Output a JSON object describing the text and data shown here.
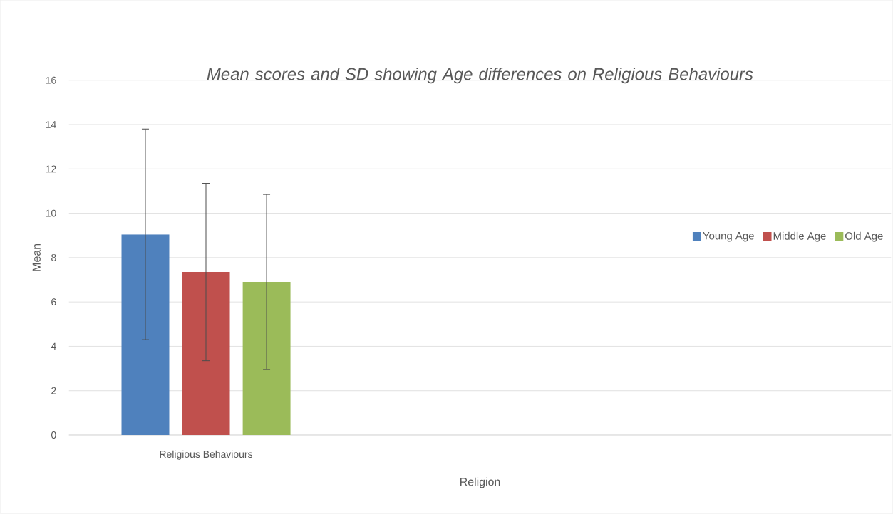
{
  "chart_data": {
    "type": "bar",
    "title": "Mean scores and SD showing Age differences on Religious Behaviours",
    "xlabel": "Religion",
    "ylabel": "Mean",
    "categories": [
      "Religious Behaviours",
      null,
      null
    ],
    "series": [
      {
        "name": "Young Age",
        "color": "#4f81bd",
        "values": [
          9.05,
          null,
          null
        ],
        "errors": [
          4.75,
          null,
          null
        ]
      },
      {
        "name": "Middle Age",
        "color": "#c0504d",
        "values": [
          7.35,
          null,
          null
        ],
        "errors": [
          4.0,
          null,
          null
        ]
      },
      {
        "name": "Old Age",
        "color": "#9bbb59",
        "values": [
          6.9,
          null,
          null
        ],
        "errors": [
          3.95,
          null,
          null
        ]
      }
    ],
    "ylim": [
      0,
      16
    ],
    "yticks": [
      0,
      2,
      4,
      6,
      8,
      10,
      12,
      14,
      16
    ],
    "grid": "y",
    "legend": "right"
  }
}
